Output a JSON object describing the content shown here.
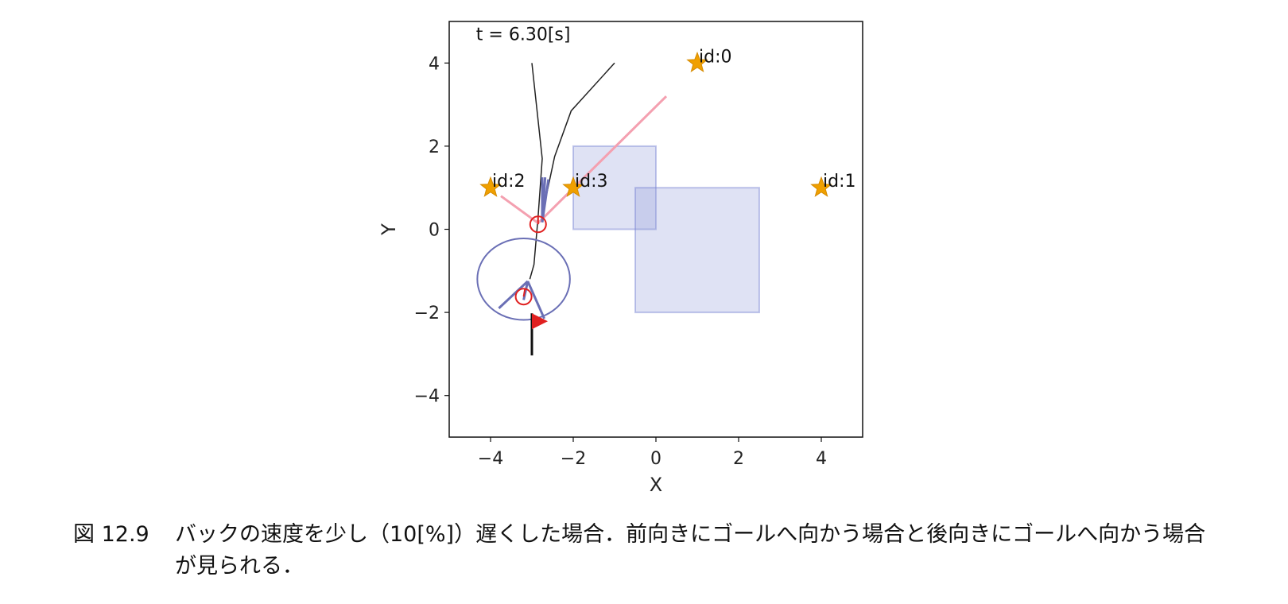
{
  "chart_data": {
    "type": "scatter",
    "xlabel": "X",
    "ylabel": "Y",
    "xlim": [
      -5,
      5
    ],
    "ylim": [
      -5,
      5
    ],
    "xticks": [
      -4,
      -2,
      0,
      2,
      4
    ],
    "yticks": [
      -4,
      -2,
      0,
      2,
      4
    ],
    "grid": false,
    "time_text": "t = 6.30[s]",
    "landmarks": [
      {
        "label": "id:0",
        "x": 1,
        "y": 4
      },
      {
        "label": "id:1",
        "x": 4,
        "y": 1
      },
      {
        "label": "id:2",
        "x": -4,
        "y": 1
      },
      {
        "label": "id:3",
        "x": -2,
        "y": 1
      }
    ],
    "obstacles": [
      {
        "x0": -2,
        "y0": 0,
        "x1": 0,
        "y1": 2
      },
      {
        "x0": -0.5,
        "y0": -2,
        "x1": 2.5,
        "y1": 1
      }
    ],
    "trajectories": [
      [
        [
          -1,
          4
        ],
        [
          -2.05,
          2.85
        ],
        [
          -2.45,
          1.75
        ],
        [
          -2.75,
          0.35
        ]
      ],
      [
        [
          -3,
          4
        ],
        [
          -2.75,
          1.7
        ],
        [
          -2.85,
          0.3
        ],
        [
          -2.95,
          -0.85
        ],
        [
          -3.05,
          -1.2
        ]
      ]
    ],
    "observations": [
      {
        "from": [
          -2.85,
          0.15
        ],
        "to": [
          -3.75,
          0.8
        ]
      },
      {
        "from": [
          -2.85,
          0.15
        ],
        "to": [
          0.25,
          3.2
        ]
      }
    ],
    "robots": [
      {
        "x": -2.85,
        "y": 0.12,
        "theta_deg": 90
      },
      {
        "x": -3.2,
        "y": -1.62,
        "theta_deg": 80
      }
    ],
    "goal": {
      "x": -3,
      "y": -2.5
    },
    "covariance_ellipse": {
      "cx": -3.2,
      "cy": -1.2,
      "rx": 1.12,
      "ry": 0.98
    },
    "particle_fan": {
      "apex": [
        -3.1,
        -1.25
      ],
      "left": [
        -3.8,
        -1.9
      ],
      "right": [
        -2.7,
        -2.15
      ],
      "mid": [
        -3.2,
        -1.7
      ]
    }
  },
  "caption": {
    "number": "図 12.9",
    "text": "バックの速度を少し（10[%]）遅くした場合．前向きにゴールへ向かう場合と後向きにゴールへ向かう場合が見られる．"
  }
}
